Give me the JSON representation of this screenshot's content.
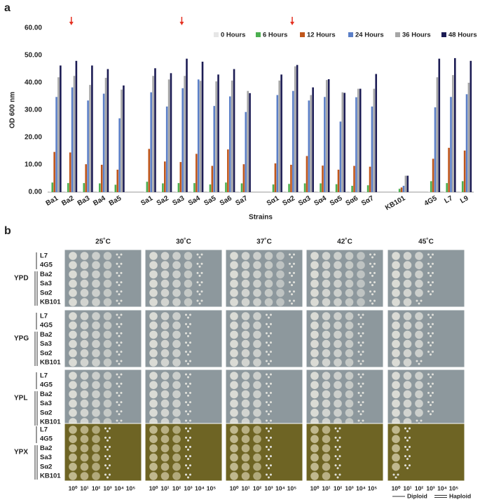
{
  "panel_labels": [
    "a",
    "b"
  ],
  "chart_data": {
    "type": "bar",
    "ylabel": "OD 600 nm",
    "xlabel": "Strains",
    "categories": [
      "Ba1",
      "Ba2",
      "Ba3",
      "Ba4",
      "Ba5",
      null,
      "Sa1",
      "Sa2",
      "Sa3",
      "Sa4",
      "Sa5",
      "Sa6",
      "Sa7",
      null,
      "Sα1",
      "Sα2",
      "Sα3",
      "Sα4",
      "Sα5",
      "Sα6",
      "Sα7",
      null,
      "KB101",
      null,
      "4G5",
      "L7",
      "L9"
    ],
    "series": [
      {
        "name": "0 Hours",
        "color": "#e6e6e6",
        "values": [
          0.3,
          0.3,
          0.3,
          0.3,
          0.3,
          null,
          0.3,
          0.3,
          0.3,
          0.3,
          0.3,
          0.3,
          0.3,
          null,
          0.3,
          0.3,
          0.3,
          0.3,
          0.3,
          0.3,
          0.3,
          null,
          0.3,
          null,
          0.3,
          0.3,
          0.3
        ]
      },
      {
        "name": "6 Hours",
        "color": "#4caf50",
        "values": [
          3.5,
          3.3,
          3.3,
          3.2,
          2.7,
          null,
          3.8,
          3.2,
          3.3,
          3.3,
          2.8,
          3.5,
          3.2,
          null,
          2.8,
          3.0,
          3.2,
          3.2,
          2.9,
          2.3,
          2.5,
          null,
          1.2,
          null,
          4.0,
          3.3,
          4.0
        ]
      },
      {
        "name": "12 Hours",
        "color": "#c0561b",
        "values": [
          14.7,
          14.5,
          10.2,
          10.0,
          8.2,
          null,
          15.8,
          11.2,
          11.0,
          14.0,
          9.6,
          15.6,
          10.2,
          null,
          10.5,
          10.0,
          13.2,
          9.7,
          8.2,
          9.6,
          9.3,
          null,
          1.7,
          null,
          12.2,
          16.2,
          15.2
        ]
      },
      {
        "name": "24 Hours",
        "color": "#5b7fc7",
        "values": [
          34.8,
          38.3,
          33.5,
          36.0,
          27.0,
          null,
          36.5,
          31.3,
          38.0,
          41.2,
          31.5,
          35.0,
          29.3,
          null,
          35.5,
          37.0,
          33.5,
          34.8,
          25.8,
          34.7,
          31.3,
          null,
          2.3,
          null,
          31.0,
          34.8,
          35.8
        ]
      },
      {
        "name": "36 Hours",
        "color": "#a6a6a6",
        "values": [
          42.0,
          42.5,
          39.2,
          41.8,
          37.5,
          null,
          42.5,
          41.2,
          42.5,
          40.7,
          40.5,
          40.8,
          37.0,
          null,
          40.8,
          46.0,
          35.5,
          41.0,
          36.5,
          37.8,
          37.8,
          null,
          6.0,
          null,
          42.0,
          42.8,
          40.0
        ]
      },
      {
        "name": "48 Hours",
        "color": "#1c1c54",
        "values": [
          46.3,
          48.0,
          46.3,
          45.0,
          39.0,
          null,
          45.3,
          43.5,
          48.8,
          47.7,
          43.0,
          45.0,
          36.2,
          null,
          43.0,
          46.5,
          38.3,
          41.3,
          36.3,
          37.8,
          43.2,
          null,
          6.0,
          null,
          48.8,
          49.0,
          48.0
        ]
      }
    ],
    "ylim": [
      0,
      60
    ],
    "yticks": [
      {
        "value": 0,
        "label": "0.00"
      },
      {
        "value": 10,
        "label": "10.00"
      },
      {
        "value": 20,
        "label": "20.00"
      },
      {
        "value": 30,
        "label": "30.00"
      },
      {
        "value": 40,
        "label": "40.00"
      },
      {
        "value": 50,
        "label": "50.00"
      },
      {
        "value": 60,
        "label": "60.00"
      }
    ],
    "grid": false,
    "legend": "top-right"
  },
  "spot_assay": {
    "temperatures": [
      "25˚C",
      "30˚C",
      "37˚C",
      "42˚C",
      "45˚C"
    ],
    "media": [
      "YPD",
      "YPG",
      "YPL",
      "YPX"
    ],
    "strains": [
      "L7",
      "4G5",
      "Ba2",
      "Sa3",
      "Sα2",
      "KB101"
    ],
    "dilutions": [
      "10⁰",
      "10¹",
      "10²",
      "10³",
      "10⁴",
      "10⁵"
    ],
    "legend": [
      "Diploid",
      "Haploid"
    ]
  }
}
